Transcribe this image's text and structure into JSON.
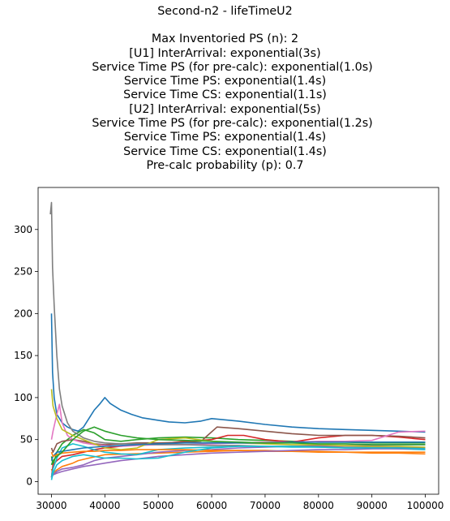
{
  "chart_data": {
    "type": "line",
    "title_lines": [
      "Second-n2 - lifeTimeU2",
      "",
      "Max Inventoried PS (n): 2",
      "[U1] InterArrival: exponential(3s)",
      "    Service Time PS (for pre-calc): exponential(1.0s)",
      "Service Time PS: exponential(1.4s)",
      "Service Time CS: exponential(1.1s)",
      "[U2] InterArrival: exponential(5s)",
      "    Service Time PS (for pre-calc): exponential(1.2s)",
      "Service Time PS: exponential(1.4s)",
      "Service Time CS: exponential(1.4s)",
      "Pre-calc probability (p): 0.7"
    ],
    "xlabel": "",
    "ylabel": "",
    "xlim": [
      27500,
      102500
    ],
    "ylim": [
      -15,
      350
    ],
    "xticks": [
      30000,
      40000,
      50000,
      60000,
      70000,
      80000,
      90000,
      100000
    ],
    "xtick_labels": [
      "30000",
      "40000",
      "50000",
      "60000",
      "70000",
      "80000",
      "90000",
      "100000"
    ],
    "yticks": [
      0,
      50,
      100,
      150,
      200,
      250,
      300
    ],
    "ytick_labels": [
      "0",
      "50",
      "100",
      "150",
      "200",
      "250",
      "300"
    ],
    "grid": false,
    "series": [
      {
        "color": "#1f77b4",
        "x": [
          30000,
          30200,
          30500,
          31000,
          32000,
          33000,
          34000,
          35000,
          36000,
          37000,
          38000,
          39000,
          40000,
          41000,
          43000,
          45000,
          47000,
          50000,
          52000,
          55000,
          58000,
          60000,
          65000,
          70000,
          75000,
          80000,
          85000,
          90000,
          95000,
          100000
        ],
        "y": [
          200,
          130,
          100,
          80,
          70,
          65,
          62,
          60,
          65,
          75,
          85,
          92,
          100,
          93,
          85,
          80,
          76,
          73,
          71,
          70,
          72,
          75,
          72,
          68,
          65,
          63,
          62,
          61,
          60,
          59
        ]
      },
      {
        "color": "#ff7f0e",
        "x": [
          30000,
          30300,
          31000,
          32000,
          33000,
          34000,
          35000,
          37000,
          40000,
          45000,
          50000,
          55000,
          60000,
          65000,
          70000,
          75000,
          80000,
          85000,
          90000,
          95000,
          100000
        ],
        "y": [
          15,
          10,
          14,
          18,
          20,
          22,
          25,
          28,
          32,
          33,
          34,
          35,
          36,
          37,
          37,
          36,
          35,
          35,
          34,
          34,
          33
        ]
      },
      {
        "color": "#2ca02c",
        "x": [
          30000,
          30300,
          31000,
          32000,
          34000,
          36000,
          38000,
          40000,
          43000,
          46000,
          50000,
          55000,
          60000,
          65000,
          70000,
          75000,
          80000,
          85000,
          90000,
          95000,
          100000
        ],
        "y": [
          30,
          20,
          35,
          45,
          55,
          62,
          58,
          50,
          48,
          50,
          52,
          53,
          52,
          50,
          49,
          48,
          47,
          47,
          46,
          46,
          46
        ]
      },
      {
        "color": "#d62728",
        "x": [
          30000,
          30300,
          31000,
          32000,
          34000,
          36000,
          38000,
          40000,
          43000,
          46000,
          50000,
          55000,
          60000,
          63000,
          66000,
          70000,
          75000,
          80000,
          85000,
          90000,
          95000,
          100000
        ],
        "y": [
          5,
          20,
          25,
          30,
          32,
          35,
          38,
          40,
          42,
          44,
          45,
          48,
          50,
          55,
          55,
          50,
          47,
          52,
          55,
          55,
          53,
          50
        ]
      },
      {
        "color": "#9467bd",
        "x": [
          30000,
          30300,
          31000,
          32000,
          34000,
          36000,
          38000,
          40000,
          43000,
          46000,
          50000,
          55000,
          60000,
          65000,
          70000,
          75000,
          80000,
          85000,
          90000,
          95000,
          100000
        ],
        "y": [
          10,
          8,
          12,
          15,
          17,
          20,
          25,
          28,
          30,
          32,
          35,
          37,
          38,
          40,
          41,
          42,
          43,
          43,
          43,
          44,
          44
        ]
      },
      {
        "color": "#8c564b",
        "x": [
          30000,
          30300,
          31000,
          32000,
          34000,
          36000,
          38000,
          40000,
          43000,
          46000,
          50000,
          55000,
          58000,
          61000,
          65000,
          70000,
          75000,
          80000,
          85000,
          90000,
          95000,
          100000
        ],
        "y": [
          40,
          35,
          45,
          48,
          50,
          48,
          45,
          44,
          45,
          46,
          46,
          47,
          48,
          65,
          63,
          60,
          57,
          55,
          55,
          55,
          54,
          52
        ]
      },
      {
        "color": "#e377c2",
        "x": [
          30000,
          30300,
          31000,
          31500,
          32000,
          33000,
          34000,
          36000,
          38000,
          40000,
          43000,
          46000,
          50000,
          55000,
          60000,
          65000,
          70000,
          75000,
          80000,
          85000,
          90000,
          95000,
          100000
        ],
        "y": [
          50,
          60,
          80,
          92,
          70,
          55,
          50,
          46,
          44,
          43,
          42,
          43,
          44,
          44,
          45,
          46,
          47,
          47,
          48,
          48,
          49,
          59,
          60
        ]
      },
      {
        "color": "#7f7f7f",
        "x": [
          29800,
          30000,
          30200,
          30500,
          31000,
          31500,
          32000,
          33000,
          34000,
          36000,
          38000,
          40000,
          43000,
          46000,
          50000,
          55000,
          60000,
          65000,
          70000,
          75000,
          80000,
          85000,
          90000,
          95000,
          100000
        ],
        "y": [
          318,
          332,
          255,
          210,
          150,
          110,
          90,
          70,
          60,
          52,
          48,
          46,
          45,
          45,
          44,
          44,
          43,
          43,
          42,
          42,
          42,
          41,
          41,
          41,
          40
        ]
      },
      {
        "color": "#bcbd22",
        "x": [
          30000,
          30300,
          31000,
          32000,
          34000,
          36000,
          38000,
          40000,
          43000,
          46000,
          50000,
          55000,
          60000,
          65000,
          70000,
          75000,
          80000,
          85000,
          90000,
          95000,
          100000
        ],
        "y": [
          110,
          90,
          75,
          62,
          55,
          50,
          45,
          40,
          38,
          40,
          50,
          52,
          48,
          46,
          45,
          44,
          44,
          43,
          42,
          42,
          41
        ]
      },
      {
        "color": "#17becf",
        "x": [
          30000,
          30300,
          31000,
          32000,
          34000,
          36000,
          38000,
          40000,
          43000,
          46000,
          50000,
          55000,
          60000,
          65000,
          70000,
          75000,
          80000,
          85000,
          90000,
          95000,
          100000
        ],
        "y": [
          5,
          15,
          28,
          40,
          45,
          42,
          38,
          35,
          33,
          32,
          38,
          40,
          41,
          42,
          42,
          42,
          41,
          40,
          40,
          39,
          38
        ]
      },
      {
        "color": "#1f77b4",
        "x": [
          30000,
          30300,
          31000,
          32000,
          34000,
          36000,
          38000,
          40000,
          43000,
          46000,
          50000,
          55000,
          60000,
          65000,
          70000,
          75000,
          80000,
          85000,
          90000,
          95000,
          100000
        ],
        "y": [
          25,
          30,
          35,
          36,
          38,
          40,
          41,
          42,
          43,
          44,
          45,
          46,
          46,
          46,
          46,
          47,
          47,
          47,
          47,
          47,
          47
        ]
      },
      {
        "color": "#ff7f0e",
        "x": [
          30000,
          30300,
          31000,
          32000,
          34000,
          36000,
          38000,
          40000,
          43000,
          46000,
          50000,
          55000,
          60000,
          65000,
          70000,
          75000,
          80000,
          85000,
          90000,
          95000,
          100000
        ],
        "y": [
          35,
          30,
          32,
          34,
          35,
          36,
          36,
          37,
          37,
          38,
          38,
          38,
          37,
          37,
          36,
          36,
          36,
          35,
          35,
          35,
          35
        ]
      },
      {
        "color": "#2ca02c",
        "x": [
          30000,
          30300,
          31000,
          32000,
          34000,
          36000,
          38000,
          40000,
          43000,
          46000,
          50000,
          55000,
          60000,
          65000,
          70000,
          75000,
          80000,
          85000,
          90000,
          95000,
          100000
        ],
        "y": [
          20,
          25,
          30,
          35,
          50,
          60,
          65,
          60,
          55,
          52,
          50,
          49,
          48,
          47,
          46,
          46,
          45,
          45,
          44,
          44,
          44
        ]
      },
      {
        "color": "#9467bd",
        "x": [
          30000,
          30300,
          31000,
          32000,
          34000,
          36000,
          38000,
          40000,
          43000,
          46000,
          50000,
          55000,
          60000,
          65000,
          70000,
          75000,
          80000,
          85000,
          90000,
          95000,
          100000
        ],
        "y": [
          5,
          8,
          10,
          12,
          15,
          18,
          20,
          22,
          25,
          27,
          30,
          32,
          34,
          35,
          36,
          37,
          38,
          38,
          39,
          39,
          39
        ]
      },
      {
        "color": "#17becf",
        "x": [
          30000,
          30300,
          31000,
          32000,
          34000,
          36000,
          38000,
          40000,
          43000,
          46000,
          50000,
          55000,
          60000,
          65000,
          70000,
          75000,
          80000,
          85000,
          90000,
          95000,
          100000
        ],
        "y": [
          2,
          10,
          20,
          25,
          30,
          32,
          30,
          28,
          28,
          27,
          28,
          35,
          40,
          42,
          42,
          41,
          41,
          40,
          40,
          40,
          39
        ]
      }
    ]
  }
}
